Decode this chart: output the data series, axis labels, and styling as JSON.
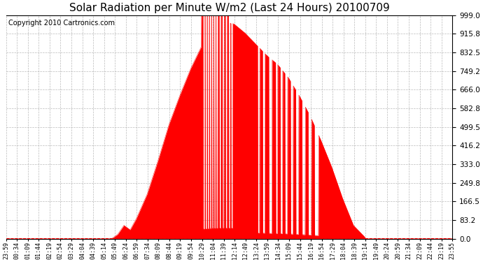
{
  "title": "Solar Radiation per Minute W/m2 (Last 24 Hours) 20100709",
  "copyright": "Copyright 2010 Cartronics.com",
  "yticks": [
    0.0,
    83.2,
    166.5,
    249.8,
    333.0,
    416.2,
    499.5,
    582.8,
    666.0,
    749.2,
    832.5,
    915.8,
    999.0
  ],
  "ylim": [
    0.0,
    999.0
  ],
  "fill_color": "#FF0000",
  "line_color": "#FF0000",
  "bg_color": "#FFFFFF",
  "grid_color": "#AAAAAA",
  "dashed_line_color": "#FF0000",
  "title_fontsize": 11,
  "copyright_fontsize": 7,
  "xtick_fontsize": 6,
  "ytick_fontsize": 7.5,
  "xtick_labels": [
    "23:59",
    "00:34",
    "01:09",
    "01:44",
    "02:19",
    "02:54",
    "03:29",
    "04:04",
    "04:39",
    "05:14",
    "05:49",
    "06:24",
    "06:59",
    "07:34",
    "08:09",
    "08:44",
    "09:19",
    "09:54",
    "10:29",
    "11:04",
    "11:39",
    "12:14",
    "12:49",
    "13:24",
    "13:59",
    "14:34",
    "15:09",
    "15:44",
    "16:19",
    "16:54",
    "17:29",
    "18:04",
    "18:39",
    "19:14",
    "19:49",
    "20:24",
    "20:59",
    "21:34",
    "22:09",
    "22:44",
    "23:19",
    "23:55"
  ]
}
